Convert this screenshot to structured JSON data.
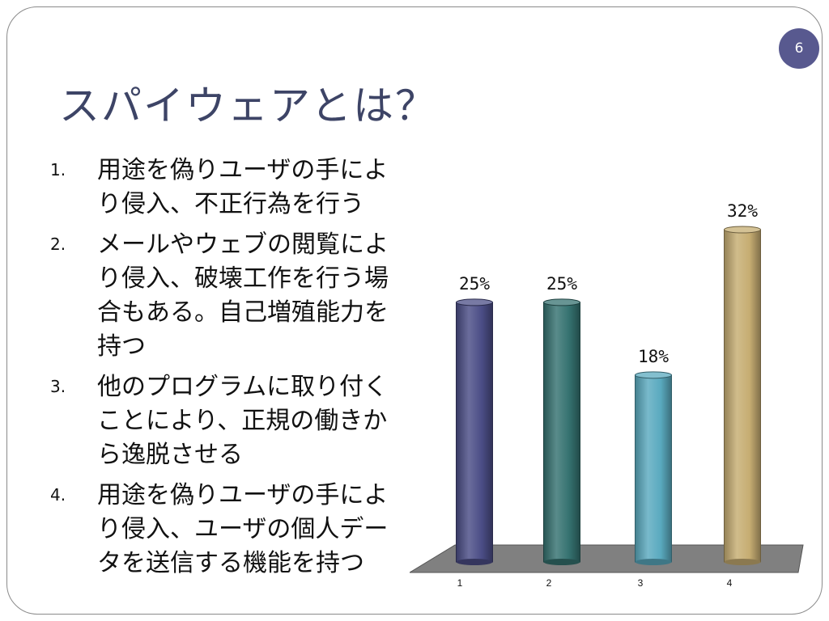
{
  "slide": {
    "page_number": "6",
    "title": "スパイウェアとは？"
  },
  "list": [
    {
      "number": "1.",
      "text": "用途を偽りユーザの手により侵入、不正行為を行う"
    },
    {
      "number": "2.",
      "text": "メールやウェブの閲覧により侵入、破壊工作を行う場合もある。自己増殖能力を持つ"
    },
    {
      "number": "3.",
      "text": "他のプログラムに取り付くことにより、正規の働きから逸脱させる"
    },
    {
      "number": "4.",
      "text": "用途を偽りユーザの手により侵入、ユーザの個人データを送信する機能を持つ"
    }
  ],
  "chart_data": {
    "type": "bar",
    "categories": [
      "1",
      "2",
      "3",
      "4"
    ],
    "values": [
      25,
      25,
      18,
      32
    ],
    "data_labels": [
      "25%",
      "25%",
      "18%",
      "32%"
    ],
    "colors": [
      "#4b4d86",
      "#357270",
      "#5aaabf",
      "#c6ad72"
    ],
    "ylim": [
      0,
      32
    ],
    "grid": false,
    "legend": "none",
    "style": "3d-cylinder"
  }
}
